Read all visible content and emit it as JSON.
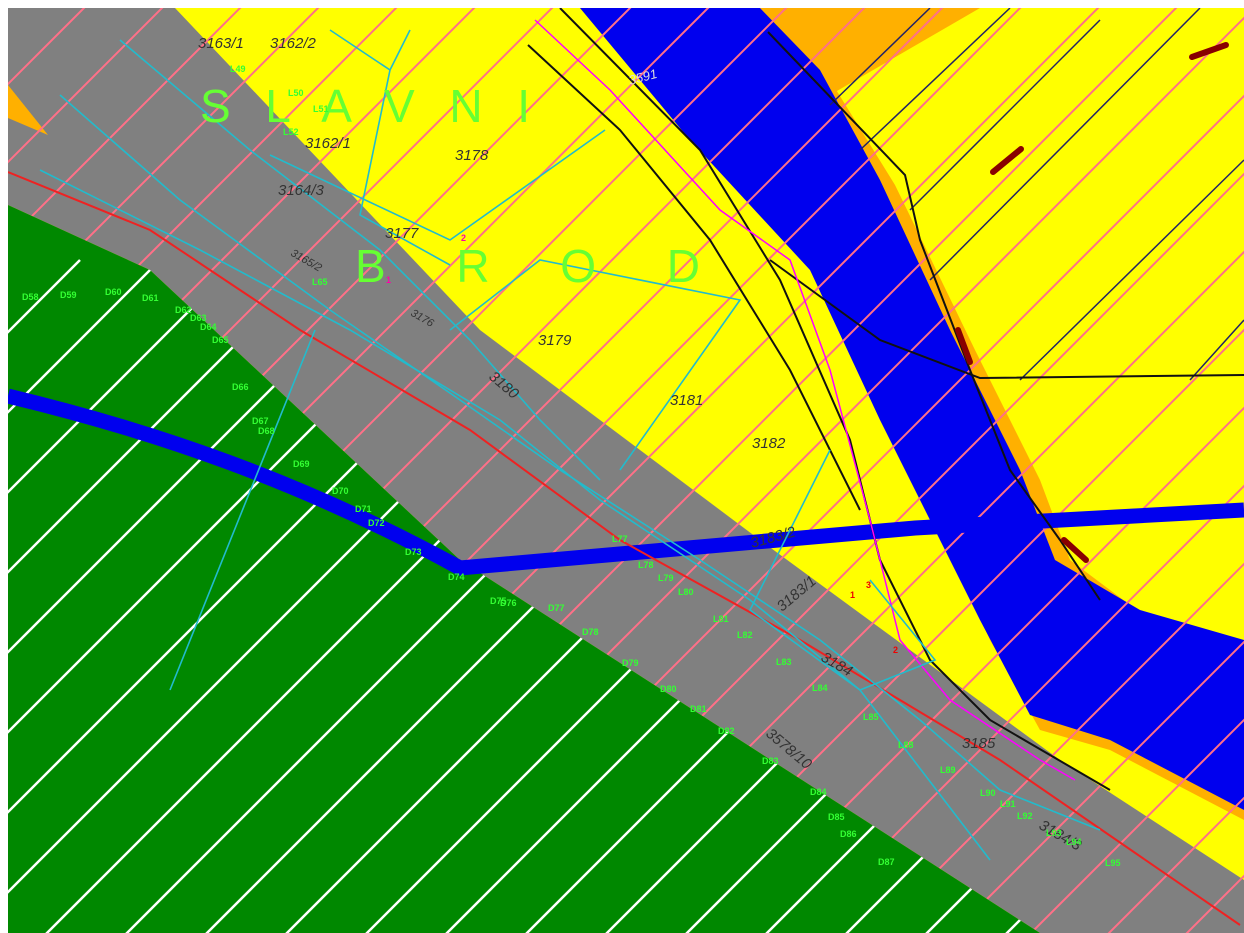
{
  "place_names": [
    "S L A V N I",
    "B R O D"
  ],
  "parcels": [
    "3163/1",
    "3162/2",
    "3162/1",
    "3178",
    "3164/3",
    "3177",
    "3165/2",
    "3176",
    "3179",
    "3180",
    "3181",
    "3182",
    "3183/2",
    "3183/1",
    "3184",
    "3185",
    "3578/10",
    "3184/3",
    "3591"
  ],
  "points_l": [
    "L49",
    "L50",
    "L51",
    "L52",
    "L65",
    "L77",
    "L78",
    "L79",
    "L80",
    "L81",
    "L82",
    "L83",
    "L84",
    "L85",
    "L88",
    "L89",
    "L90",
    "L91",
    "L92",
    "L93",
    "L94",
    "L95"
  ],
  "points_d": [
    "D58",
    "D59",
    "D60",
    "D61",
    "D62",
    "D63",
    "D64",
    "D65",
    "D66",
    "D67",
    "D68",
    "D69",
    "D70",
    "D71",
    "D72",
    "D73",
    "D74",
    "D75",
    "D76",
    "D77",
    "D78",
    "D79",
    "D80",
    "D81",
    "D82",
    "D83",
    "D84",
    "D85",
    "D86",
    "D87"
  ],
  "markers": [
    "1",
    "3",
    "2",
    "2",
    "1"
  ]
}
